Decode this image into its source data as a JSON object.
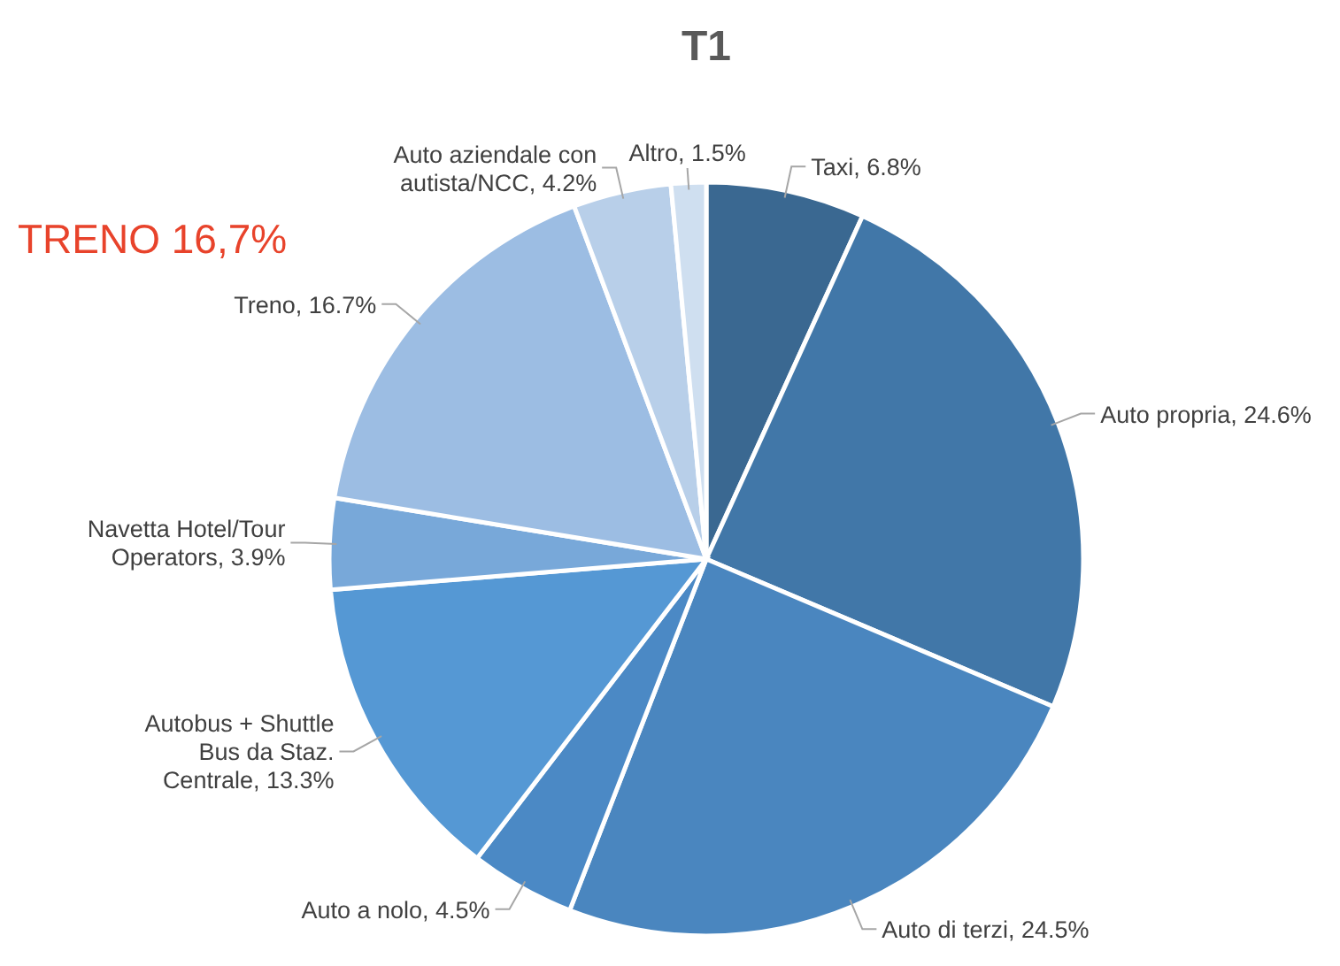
{
  "chart_data": {
    "type": "pie",
    "title": "T1",
    "categories": [
      "Taxi",
      "Auto propria",
      "Auto di terzi",
      "Auto a nolo",
      "Autobus + Shuttle Bus da Staz. Centrale",
      "Navetta Hotel/Tour Operators",
      "Treno",
      "Auto aziendale con autista/NCC",
      "Altro"
    ],
    "values": [
      6.8,
      24.6,
      24.5,
      4.5,
      13.3,
      3.9,
      16.7,
      4.2,
      1.5
    ],
    "value_labels": [
      "6.8%",
      "24.6%",
      "24.5%",
      "4.5%",
      "13.3%",
      "3.9%",
      "16.7%",
      "4.2%",
      "1.5%"
    ],
    "colors": [
      "#3a6891",
      "#4177a8",
      "#4a86bf",
      "#4b89c5",
      "#5598d4",
      "#78a8d9",
      "#9cbde3",
      "#b8cfe9",
      "#cfdff0"
    ],
    "annotations": [
      "TRENO 16,7%"
    ]
  }
}
